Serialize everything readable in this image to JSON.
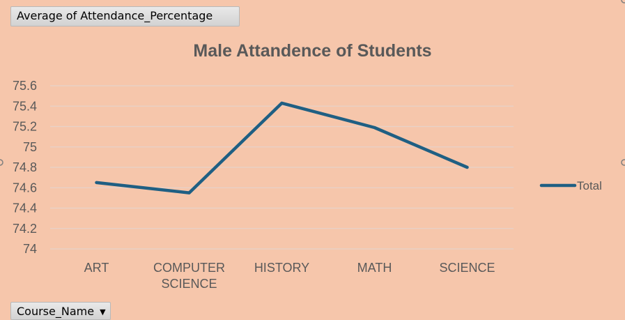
{
  "pivot": {
    "value_field": "Average of Attendance_Percentage",
    "axis_field": "Course_Name",
    "axis_field_dropdown_icon": "triangle-down-icon"
  },
  "colors": {
    "background": "#f6c6ab",
    "series": "#1f5f83",
    "gridline": "#e7d2c9",
    "text": "#595959"
  },
  "chart_data": {
    "type": "line",
    "title": "Male Attandence of Students",
    "xlabel": "",
    "ylabel": "",
    "categories": [
      "ART",
      "COMPUTER SCIENCE",
      "HISTORY",
      "MATH",
      "SCIENCE"
    ],
    "category_lines": [
      [
        "ART"
      ],
      [
        "COMPUTER",
        "SCIENCE"
      ],
      [
        "HISTORY"
      ],
      [
        "MATH"
      ],
      [
        "SCIENCE"
      ]
    ],
    "series": [
      {
        "name": "Total",
        "values": [
          74.65,
          74.55,
          75.43,
          75.19,
          74.8
        ]
      }
    ],
    "ylim": [
      74,
      75.6
    ],
    "yticks": [
      "74",
      "74.2",
      "74.4",
      "74.6",
      "74.8",
      "75",
      "75.2",
      "75.4",
      "75.6"
    ],
    "grid": true,
    "legend": "right"
  }
}
